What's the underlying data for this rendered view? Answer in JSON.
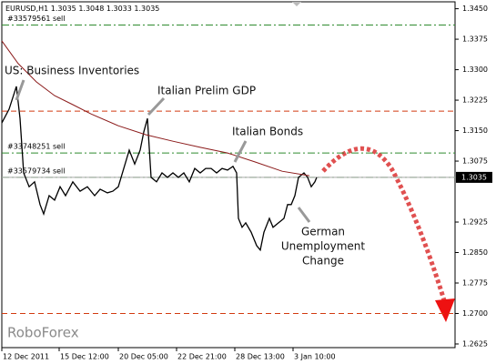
{
  "chart_data": {
    "type": "line",
    "symbol": "EURUSD,H1",
    "ohlc": [
      1.3035,
      1.3048,
      1.3033,
      1.3035
    ],
    "watermark": "RoboForex",
    "current_price": 1.3035,
    "xlim": [
      0,
      498
    ],
    "ylim": [
      1.2616,
      1.3467
    ],
    "xticks": [
      {
        "value": 0,
        "label": "12 Dec 2011"
      },
      {
        "value": 63,
        "label": "15 Dec 12:00"
      },
      {
        "value": 128,
        "label": "20 Dec 05:00"
      },
      {
        "value": 192,
        "label": "22 Dec 21:00"
      },
      {
        "value": 256,
        "label": "28 Dec 13:00"
      },
      {
        "value": 320,
        "label": "3 Jan 10:00"
      }
    ],
    "yticks": [
      {
        "value": 1.345,
        "label": "1.3450"
      },
      1.3375,
      {
        "value": 1.33,
        "label": "1.3300"
      },
      1.3225,
      {
        "value": 1.315,
        "label": "1.3150"
      },
      1.3075,
      1.2925,
      {
        "value": 1.285,
        "label": "1.2850"
      },
      1.2775,
      {
        "value": 1.27,
        "label": "1.2700"
      },
      1.2625
    ],
    "series": [
      {
        "color": "#000000",
        "x": [
          0,
          8,
          16,
          20,
          24,
          30,
          36,
          42,
          46,
          52,
          58,
          64,
          70,
          78,
          86,
          94,
          102,
          108,
          116,
          122,
          128,
          134,
          140,
          146,
          152,
          156,
          160,
          164,
          170,
          176,
          182,
          188,
          194,
          200,
          206,
          212,
          218,
          224,
          230,
          236,
          242,
          248,
          254,
          258,
          260,
          264,
          268,
          274,
          280,
          284,
          288,
          294,
          298,
          304,
          310,
          314,
          318,
          322,
          326,
          332,
          336,
          340,
          344,
          346
        ],
        "values": [
          1.3169,
          1.3203,
          1.3259,
          1.318,
          1.3046,
          1.3012,
          1.3024,
          1.2968,
          1.2945,
          1.299,
          1.2979,
          1.3012,
          1.299,
          1.3024,
          1.3001,
          1.3012,
          1.299,
          1.3006,
          1.2997,
          1.3001,
          1.3012,
          1.3057,
          1.3102,
          1.3068,
          1.3102,
          1.3147,
          1.318,
          1.3035,
          1.3024,
          1.3046,
          1.3035,
          1.3046,
          1.3035,
          1.3046,
          1.3024,
          1.3057,
          1.3046,
          1.3057,
          1.3057,
          1.3046,
          1.3057,
          1.3053,
          1.3062,
          1.3046,
          1.2934,
          1.2912,
          1.2923,
          1.29,
          1.2867,
          1.2856,
          1.29,
          1.2934,
          1.2912,
          1.2923,
          1.2934,
          1.2968,
          1.2968,
          1.299,
          1.3035,
          1.3046,
          1.3035,
          1.3012,
          1.3024,
          1.3035
        ]
      },
      {
        "color": "#8b1a1a",
        "x": [
          0,
          18,
          38,
          58,
          78,
          98,
          128,
          158,
          188,
          218,
          248,
          278,
          308,
          338
        ],
        "values": [
          1.3371,
          1.3315,
          1.327,
          1.3236,
          1.3214,
          1.3191,
          1.3162,
          1.314,
          1.3124,
          1.3109,
          1.3095,
          1.3073,
          1.305,
          1.3039
        ]
      }
    ],
    "order_levels": [
      {
        "label": "#33579561 sell",
        "value": 1.341,
        "color": "#2e8b2e"
      },
      {
        "label": "#33748251 sell",
        "value": 1.3095,
        "color": "#2e8b2e"
      },
      {
        "label": "#33579734 sell",
        "value": 1.3035,
        "color": "#2e8b2e"
      }
    ],
    "levels": [
      {
        "value": 1.3198,
        "color": "#d23a10"
      },
      {
        "value": 1.27,
        "color": "#d23a10"
      }
    ],
    "annotations": [
      {
        "text": [
          "US: Business Inventories"
        ]
      },
      {
        "text": [
          "Italian Prelim GDP"
        ]
      },
      {
        "text": [
          "Italian Bonds"
        ]
      },
      {
        "text": [
          "German",
          "Unemployment",
          "Change"
        ]
      }
    ]
  }
}
